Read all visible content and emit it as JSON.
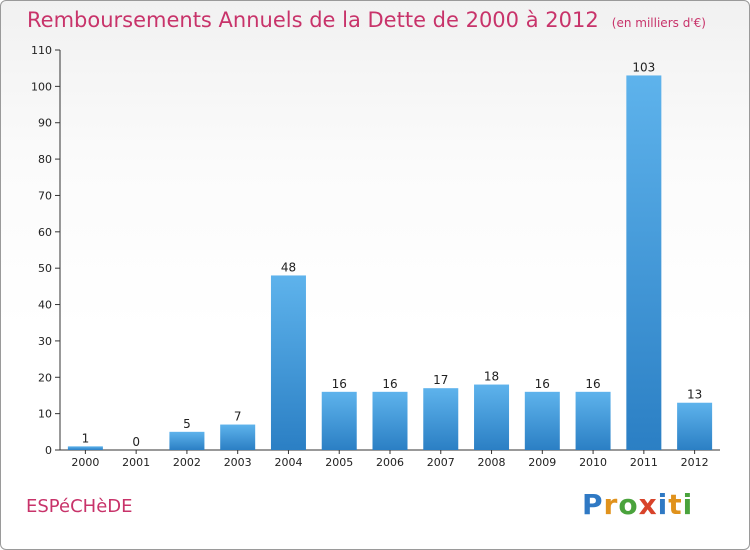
{
  "header": {
    "title": "Remboursements Annuels de la Dette de 2000 à 2012",
    "unit": "(en milliers d'€)"
  },
  "footer": {
    "commune": "ESPéCHèDE",
    "logo": "Proxiti"
  },
  "colors": {
    "accent": "#c8336a",
    "bar_top": "#5eb3ec",
    "bar_bottom": "#2b7fc4"
  },
  "chart_data": {
    "type": "bar",
    "title": "Remboursements Annuels de la Dette de 2000 à 2012",
    "categories": [
      "2000",
      "2001",
      "2002",
      "2003",
      "2004",
      "2005",
      "2006",
      "2007",
      "2008",
      "2009",
      "2010",
      "2011",
      "2012"
    ],
    "values": [
      1,
      0,
      5,
      7,
      48,
      16,
      16,
      17,
      18,
      16,
      16,
      103,
      13
    ],
    "ylim": [
      0,
      110
    ],
    "yticks": [
      0,
      10,
      20,
      30,
      40,
      50,
      60,
      70,
      80,
      90,
      100,
      110
    ],
    "grid": false
  }
}
